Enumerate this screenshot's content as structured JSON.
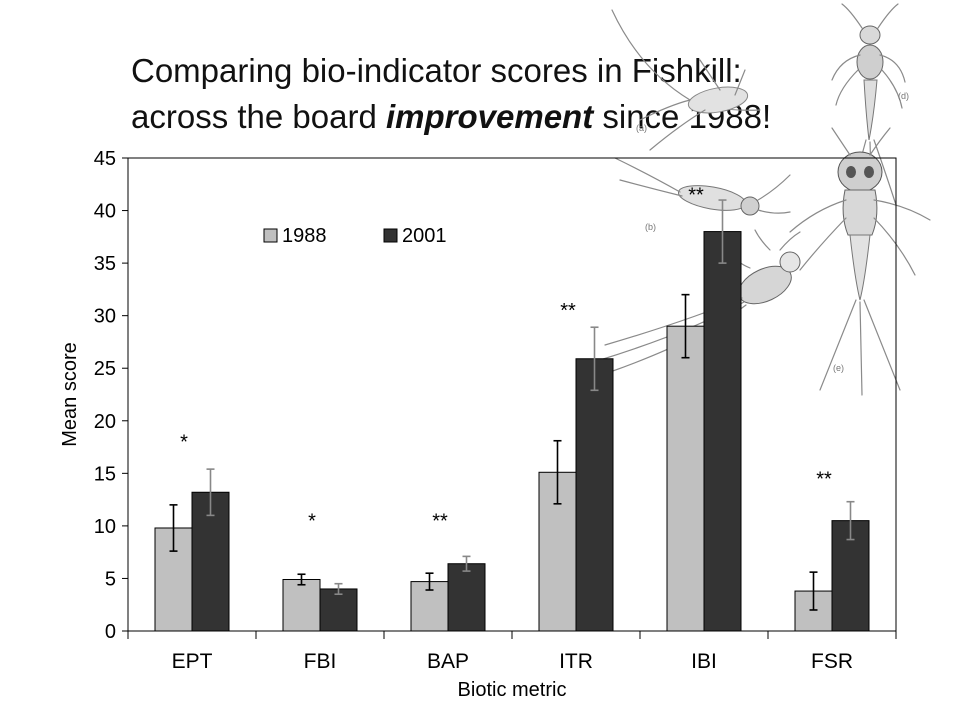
{
  "title": {
    "line1": "Comparing bio-indicator scores in Fishkill:",
    "line2_pre": "across the board ",
    "line2_emph": "improvement",
    "line2_post": " since 1988!"
  },
  "illustration": {
    "name": "mayfly-nymph-drawings",
    "labels": [
      "(a)",
      "(b)",
      "(d)",
      "(e)"
    ]
  },
  "chart_data": {
    "type": "bar",
    "xlabel": "Biotic metric",
    "ylabel": "Mean score",
    "ylim": [
      0,
      45
    ],
    "yticks": [
      0,
      5,
      10,
      15,
      20,
      25,
      30,
      35,
      40,
      45
    ],
    "grid": false,
    "legend_position": "top-left",
    "categories": [
      "EPT",
      "FBI",
      "BAP",
      "ITR",
      "IBI",
      "FSR"
    ],
    "series": [
      {
        "name": "1988",
        "color": "#c0c0c0",
        "values": [
          9.8,
          4.9,
          4.7,
          15.1,
          29.0,
          3.8
        ],
        "errors": [
          2.2,
          0.5,
          0.8,
          3.0,
          3.0,
          1.8
        ]
      },
      {
        "name": "2001",
        "color": "#333333",
        "values": [
          13.2,
          4.0,
          6.4,
          25.9,
          38.0,
          10.5
        ],
        "errors": [
          2.2,
          0.5,
          0.7,
          3.0,
          3.0,
          1.8
        ]
      }
    ],
    "significance": [
      {
        "category": "EPT",
        "text": "*",
        "y": 18.5
      },
      {
        "category": "FBI",
        "text": "*",
        "y": 11.0
      },
      {
        "category": "BAP",
        "text": "**",
        "y": 11.0
      },
      {
        "category": "ITR",
        "text": "**",
        "y": 31.0
      },
      {
        "category": "IBI",
        "text": "**",
        "y": 42.0
      },
      {
        "category": "FSR",
        "text": "**",
        "y": 15.0
      }
    ]
  }
}
